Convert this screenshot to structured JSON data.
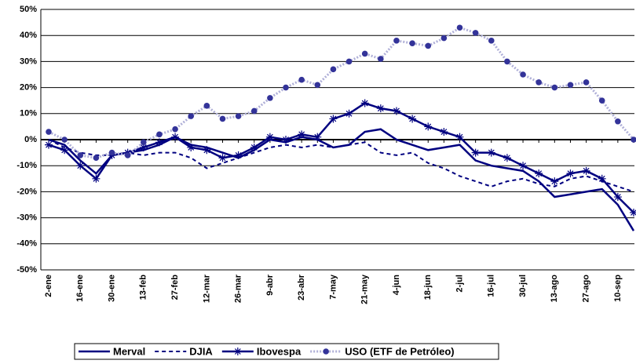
{
  "chart_data": {
    "type": "line",
    "categories": [
      "2-ene",
      null,
      "16-ene",
      null,
      "30-ene",
      null,
      "13-feb",
      null,
      "27-feb",
      null,
      "12-mar",
      null,
      "26-mar",
      null,
      "9-abr",
      null,
      "23-abr",
      null,
      "7-may",
      null,
      "21-may",
      null,
      "4-jun",
      null,
      "18-jun",
      null,
      "2-jul",
      null,
      "16-jul",
      null,
      "30-jul",
      null,
      "13-ago",
      null,
      "27-ago",
      null,
      "10-sep",
      null
    ],
    "series": [
      {
        "name": "Merval",
        "color": "#000080",
        "line_style": "solid",
        "marker": "none",
        "values": [
          0,
          -2,
          -8,
          -13,
          -6,
          -5,
          -4,
          -2,
          1,
          -2,
          -3,
          -5,
          -7,
          -4,
          0,
          -1,
          1,
          0,
          -3,
          -2,
          3,
          4,
          0,
          -2,
          -4,
          -3,
          -2,
          -8,
          -10,
          -11,
          -12,
          -16,
          -22,
          -21,
          -20,
          -19,
          -25,
          -35
        ]
      },
      {
        "name": "DJIA",
        "color": "#000080",
        "line_style": "dashed",
        "marker": "none",
        "values": [
          0,
          -3,
          -5,
          -6,
          -6,
          -5,
          -6,
          -5,
          -5,
          -7,
          -11,
          -9,
          -7,
          -5,
          -3,
          -2,
          -3,
          -2,
          -3,
          -2,
          -1,
          -5,
          -6,
          -5,
          -9,
          -11,
          -14,
          -16,
          -18,
          -16,
          -15,
          -17,
          -18,
          -15,
          -14,
          -16,
          -18,
          -20
        ]
      },
      {
        "name": "Ibovespa",
        "color": "#000080",
        "line_style": "solid",
        "marker": "star",
        "values": [
          -2,
          -4,
          -10,
          -15,
          -6,
          -5,
          -3,
          -1,
          1,
          -3,
          -4,
          -7,
          -6,
          -3,
          1,
          0,
          2,
          1,
          8,
          10,
          14,
          12,
          11,
          8,
          5,
          3,
          1,
          -5,
          -5,
          -7,
          -10,
          -13,
          -16,
          -13,
          -12,
          -15,
          -22,
          -28
        ]
      },
      {
        "name": "USO (ETF de Petróleo)",
        "color": "#333399",
        "line_style": "dotted",
        "marker": "circle",
        "values": [
          3,
          0,
          -6,
          -7,
          -5,
          -6,
          -1,
          2,
          4,
          9,
          13,
          8,
          9,
          11,
          16,
          20,
          23,
          21,
          27,
          30,
          33,
          31,
          38,
          37,
          36,
          39,
          43,
          41,
          38,
          30,
          25,
          22,
          20,
          21,
          22,
          15,
          7,
          0
        ]
      }
    ],
    "ylim": [
      -50,
      50
    ],
    "yticks": [
      {
        "value": -50,
        "label": "-50%"
      },
      {
        "value": -40,
        "label": "-40%"
      },
      {
        "value": -30,
        "label": "-30%"
      },
      {
        "value": -20,
        "label": "-20%"
      },
      {
        "value": -10,
        "label": "-10%"
      },
      {
        "value": 0,
        "label": "0%"
      },
      {
        "value": 10,
        "label": "10%"
      },
      {
        "value": 20,
        "label": "20%"
      },
      {
        "value": 30,
        "label": "30%"
      },
      {
        "value": 40,
        "label": "40%"
      },
      {
        "value": 50,
        "label": "50%"
      }
    ],
    "grid": true,
    "legend": "bottom"
  }
}
